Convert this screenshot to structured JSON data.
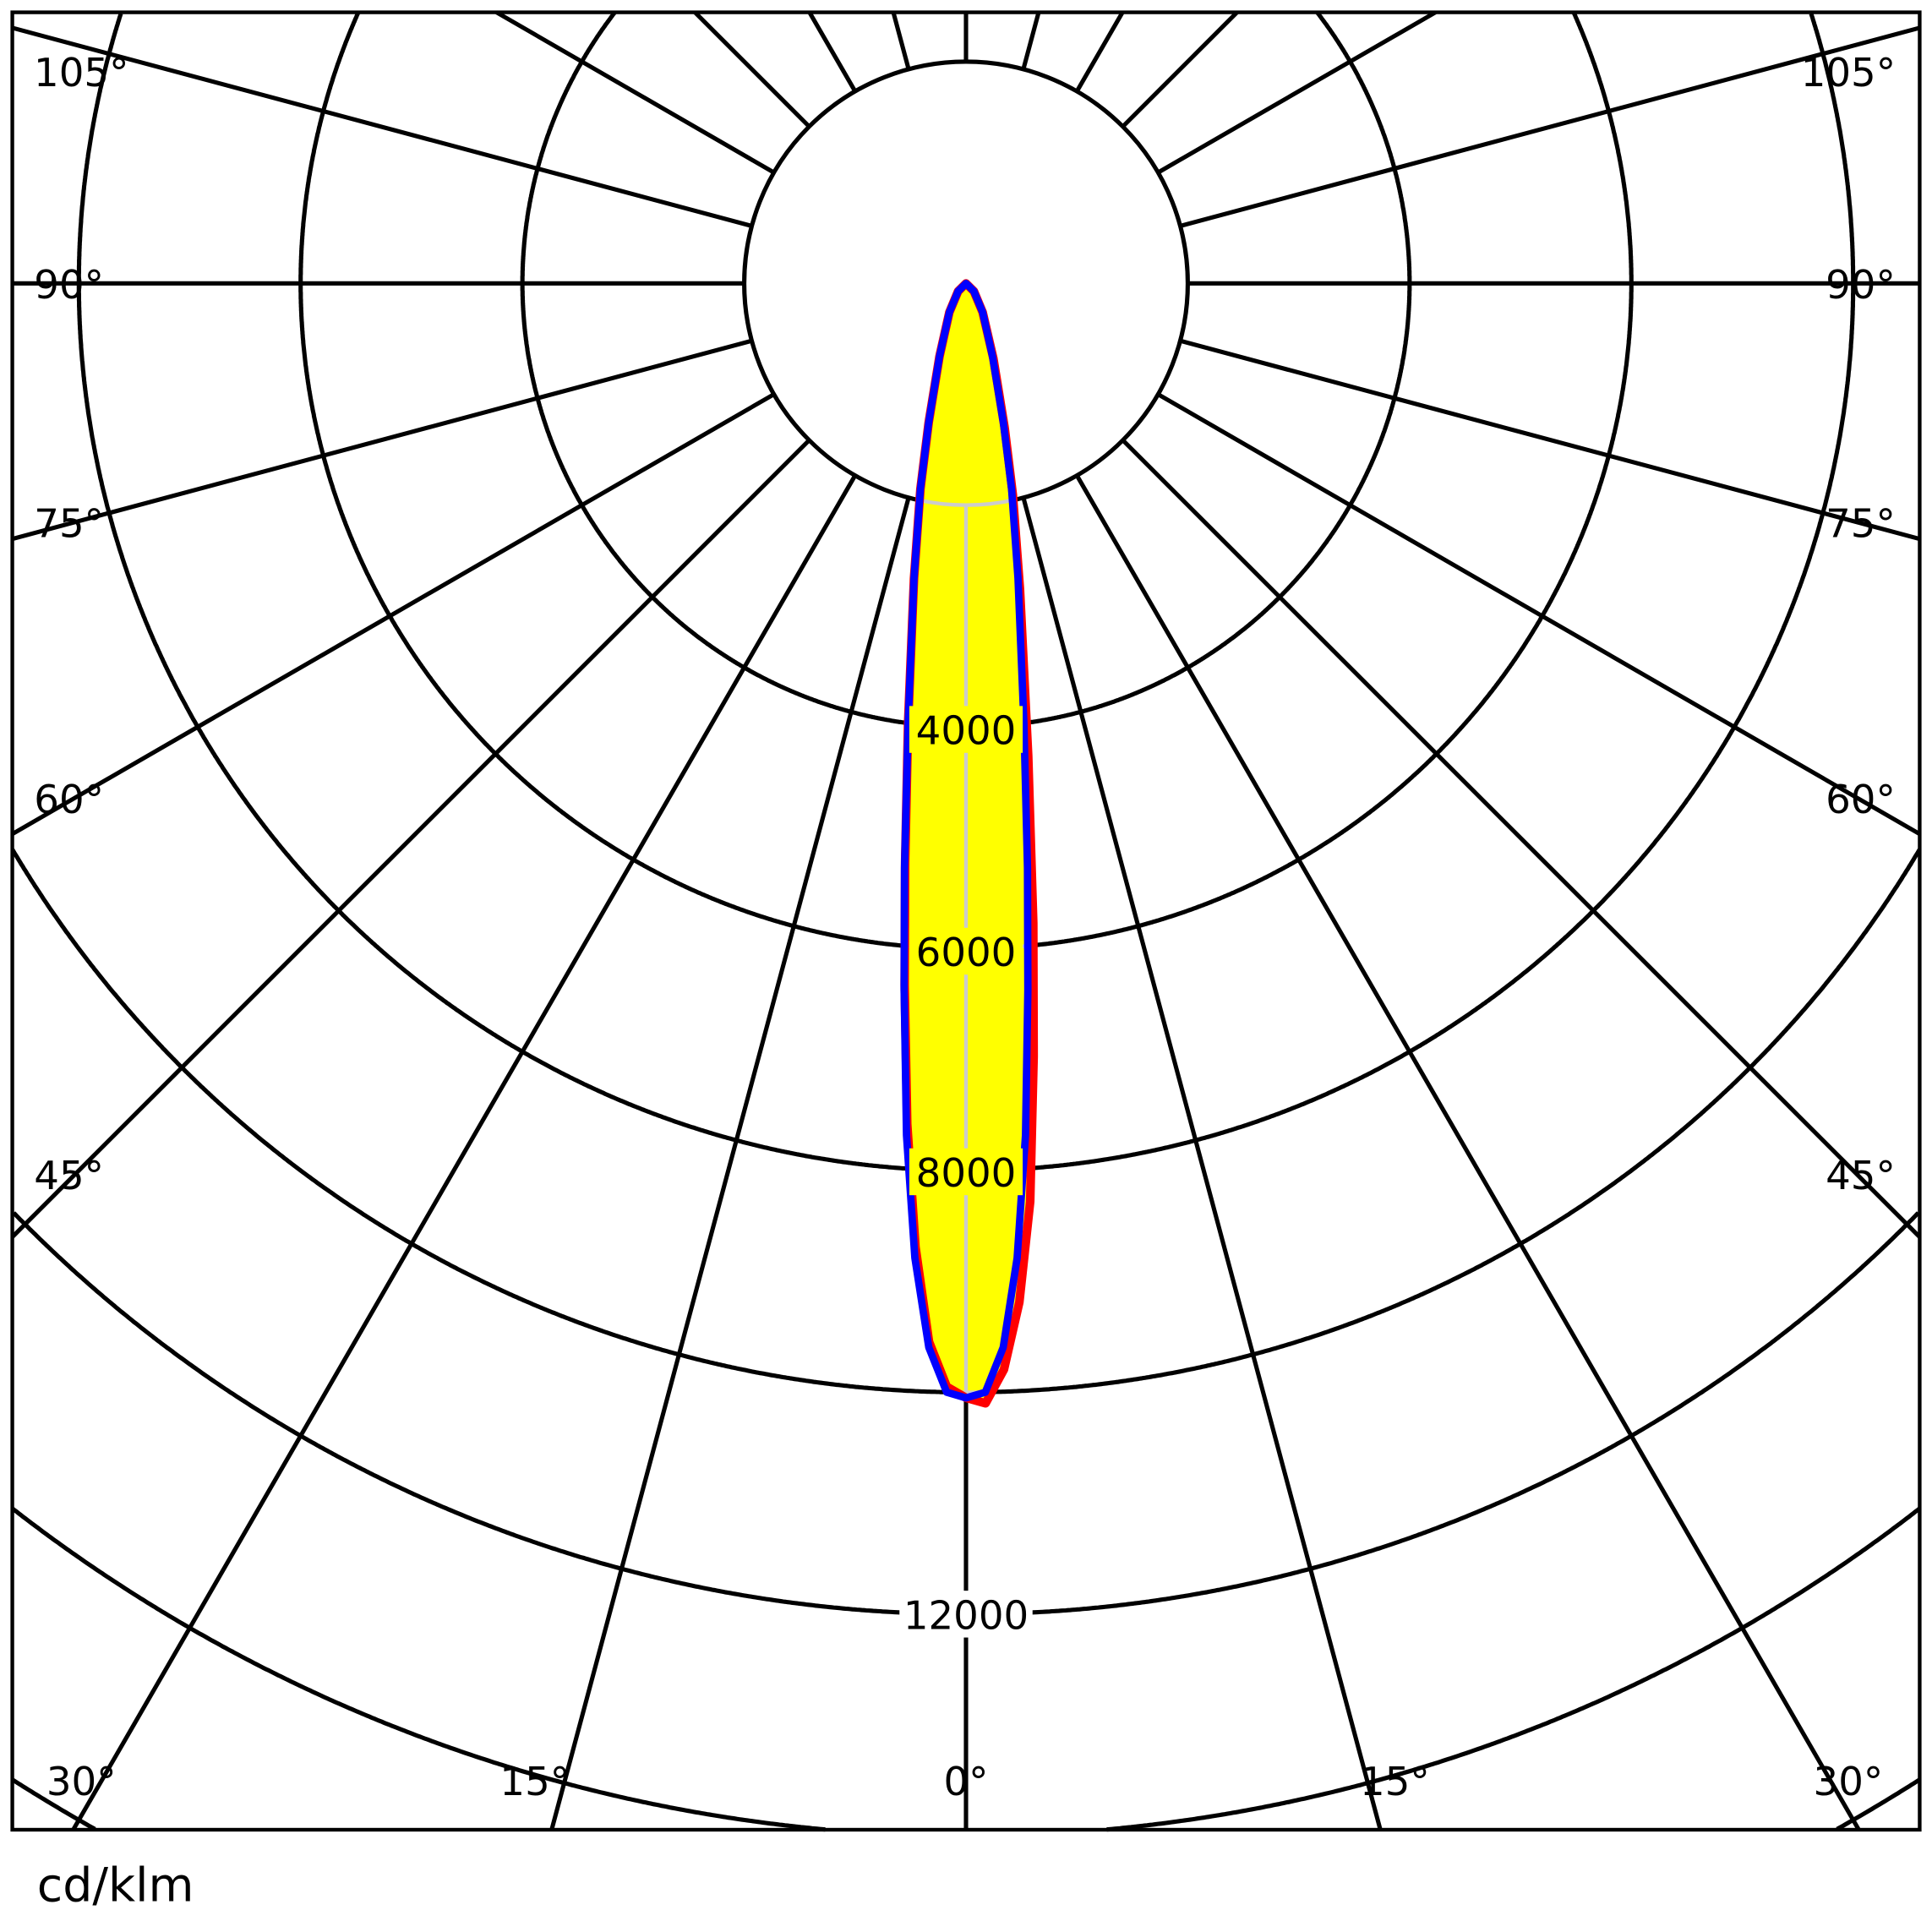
{
  "chart_data": {
    "type": "polar",
    "title": "",
    "unit_label": "cd/klm",
    "radial_axis": {
      "step": 2000,
      "range": [
        0,
        18000
      ],
      "tick_labels": [
        "4000",
        "6000",
        "8000",
        "12000"
      ]
    },
    "angular_axis": {
      "step_deg": 15,
      "side_labels": [
        "105°",
        "90°",
        "75°",
        "60°",
        "45°"
      ],
      "bottom_labels": [
        "30°",
        "15°",
        "0°",
        "15°",
        "30°"
      ]
    },
    "grid": true,
    "fill_color": "#ffff00",
    "series": [
      {
        "color": "#ff0000",
        "points": [
          [
            -90,
            0
          ],
          [
            -45,
            100
          ],
          [
            -30,
            300
          ],
          [
            -20,
            700
          ],
          [
            -15,
            1300
          ],
          [
            -12.5,
            1900
          ],
          [
            -10,
            2700
          ],
          [
            -7.5,
            4000
          ],
          [
            -6,
            5250
          ],
          [
            -5,
            6350
          ],
          [
            -4,
            7600
          ],
          [
            -3,
            8700
          ],
          [
            -2,
            9550
          ],
          [
            -1,
            9950
          ],
          [
            0,
            10050
          ],
          [
            1,
            10100
          ],
          [
            2,
            9800
          ],
          [
            3,
            9200
          ],
          [
            4,
            8300
          ],
          [
            5,
            7000
          ],
          [
            6,
            5800
          ],
          [
            7.5,
            4300
          ],
          [
            10,
            2800
          ],
          [
            12.5,
            1950
          ],
          [
            15,
            1350
          ],
          [
            20,
            720
          ],
          [
            30,
            300
          ],
          [
            45,
            100
          ],
          [
            90,
            0
          ]
        ]
      },
      {
        "color": "#0000ff",
        "points": [
          [
            -90,
            0
          ],
          [
            -45,
            100
          ],
          [
            -30,
            300
          ],
          [
            -20,
            700
          ],
          [
            -15,
            1300
          ],
          [
            -12.5,
            1900
          ],
          [
            -10,
            2700
          ],
          [
            -7.5,
            4000
          ],
          [
            -6,
            5300
          ],
          [
            -5,
            6400
          ],
          [
            -4,
            7700
          ],
          [
            -3,
            8800
          ],
          [
            -2,
            9600
          ],
          [
            -1,
            10000
          ],
          [
            0,
            10050
          ],
          [
            1,
            10000
          ],
          [
            2,
            9600
          ],
          [
            3,
            8800
          ],
          [
            4,
            7700
          ],
          [
            5,
            6400
          ],
          [
            6,
            5300
          ],
          [
            7.5,
            4000
          ],
          [
            10,
            2700
          ],
          [
            12.5,
            1900
          ],
          [
            15,
            1300
          ],
          [
            20,
            700
          ],
          [
            30,
            300
          ],
          [
            45,
            100
          ],
          [
            90,
            0
          ]
        ]
      }
    ]
  }
}
